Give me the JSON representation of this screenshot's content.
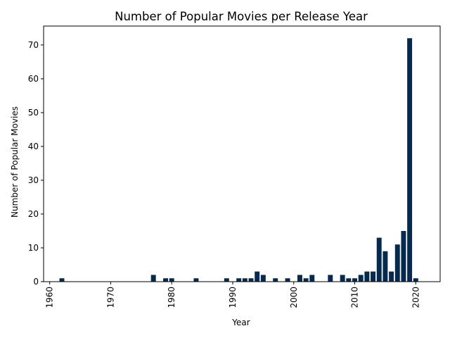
{
  "chart_data": {
    "type": "bar",
    "title": "Number of Popular Movies per Release Year",
    "xlabel": "Year",
    "ylabel": "Number of Popular Movies",
    "x_ticks": [
      "1960",
      "1970",
      "1980",
      "1990",
      "2000",
      "2010",
      "2020"
    ],
    "y_ticks": [
      "0",
      "10",
      "20",
      "30",
      "40",
      "50",
      "60",
      "70"
    ],
    "xlim": [
      1959,
      2024
    ],
    "ylim": [
      0,
      75.6
    ],
    "grid": false,
    "bar_color": "#062a4d",
    "categories": [
      1962,
      1977,
      1979,
      1980,
      1984,
      1989,
      1991,
      1992,
      1993,
      1994,
      1995,
      1997,
      1999,
      2001,
      2002,
      2003,
      2006,
      2008,
      2009,
      2010,
      2011,
      2012,
      2013,
      2014,
      2015,
      2016,
      2017,
      2018,
      2019,
      2020
    ],
    "values": [
      1,
      2,
      1,
      1,
      1,
      1,
      1,
      1,
      1,
      3,
      2,
      1,
      1,
      2,
      1,
      2,
      2,
      2,
      1,
      1,
      2,
      3,
      3,
      13,
      9,
      3,
      11,
      15,
      72,
      1
    ]
  }
}
